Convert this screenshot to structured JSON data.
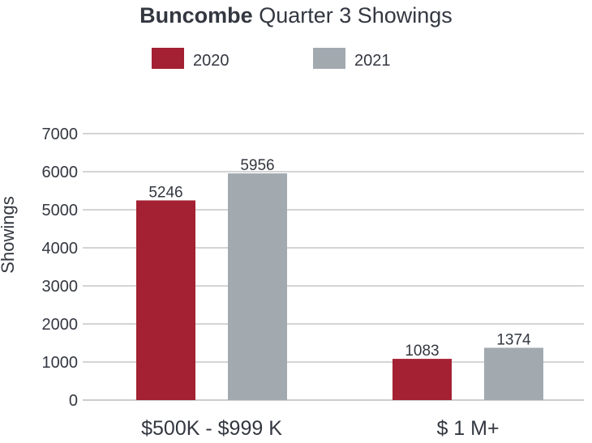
{
  "chart_data": {
    "type": "bar",
    "title_bold": "Buncombe",
    "title_rest": " Quarter 3 Showings",
    "ylabel": "Showings",
    "xlabel": "",
    "categories": [
      "$500K - $999 K",
      "$ 1 M+"
    ],
    "series": [
      {
        "name": "2020",
        "values": [
          5246,
          1083
        ],
        "color": "#a32132"
      },
      {
        "name": "2021",
        "values": [
          5956,
          1374
        ],
        "color": "#a2aab0"
      }
    ],
    "ylim": [
      0,
      7000
    ],
    "yticks": [
      "0",
      "1000",
      "2000",
      "3000",
      "4000",
      "5000",
      "6000",
      "7000"
    ],
    "grid": true,
    "legend_position": "top"
  }
}
